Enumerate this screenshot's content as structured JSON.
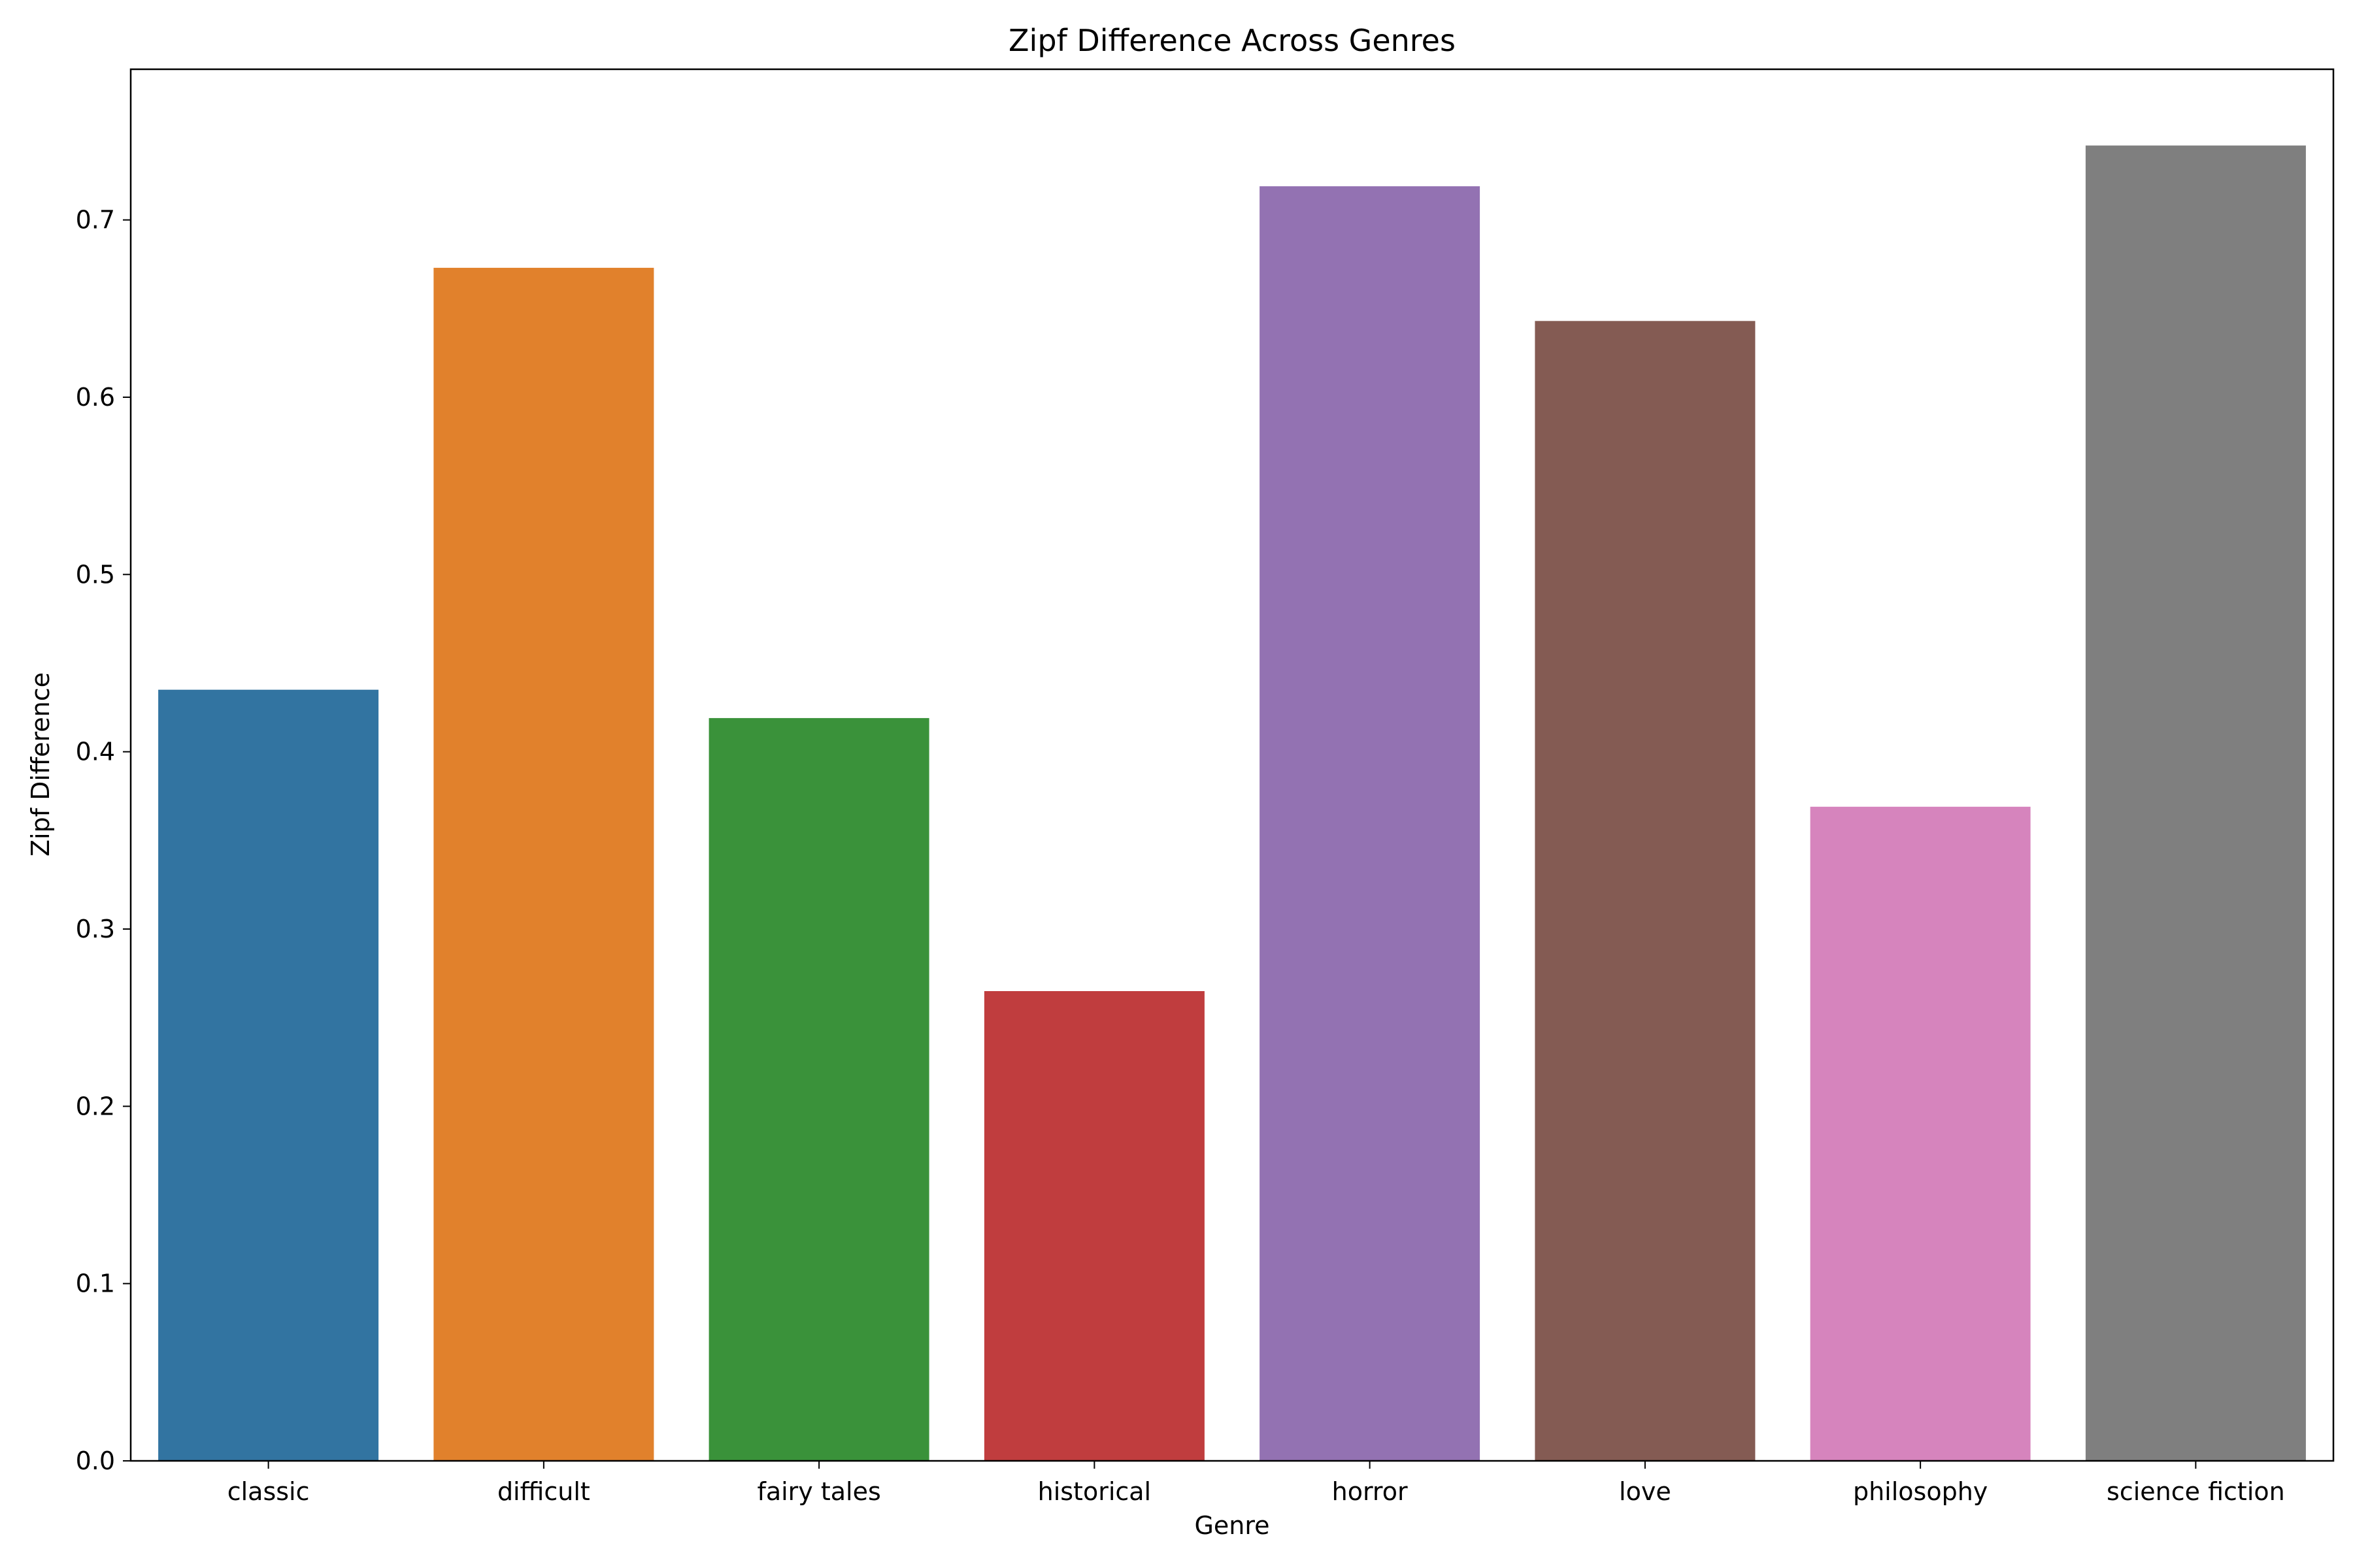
{
  "chart_data": {
    "type": "bar",
    "title": "Zipf Difference Across Genres",
    "xlabel": "Genre",
    "ylabel": "Zipf Difference",
    "categories": [
      "classic",
      "difficult",
      "fairy tales",
      "historical",
      "horror",
      "love",
      "philosophy",
      "science fiction"
    ],
    "values": [
      0.435,
      0.673,
      0.419,
      0.265,
      0.719,
      0.643,
      0.369,
      0.742
    ],
    "colors": [
      "#3274a1",
      "#e1812c",
      "#3a923a",
      "#c03d3e",
      "#9372b2",
      "#845b53",
      "#d684bd",
      "#7f7f7f"
    ],
    "ylim": [
      0,
      0.785
    ],
    "yticks": [
      "0.0",
      "0.1",
      "0.2",
      "0.3",
      "0.4",
      "0.5",
      "0.6",
      "0.7"
    ],
    "grid": false
  }
}
